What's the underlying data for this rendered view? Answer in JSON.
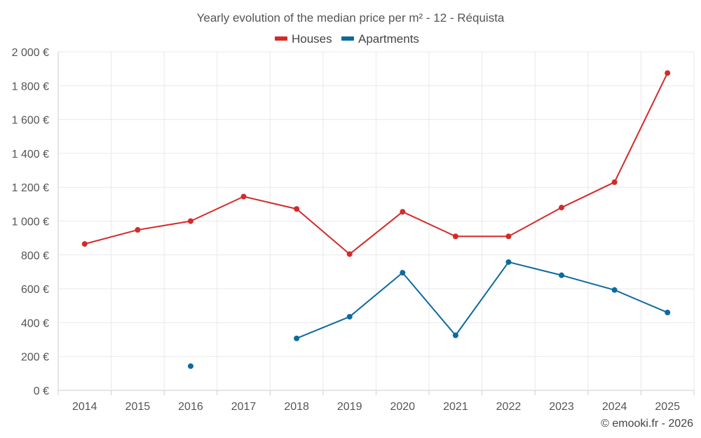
{
  "chart_data": {
    "type": "line",
    "title": "Yearly evolution of the median price per m² - 12 - Réquista",
    "categories": [
      "2014",
      "2015",
      "2016",
      "2017",
      "2018",
      "2019",
      "2020",
      "2021",
      "2022",
      "2023",
      "2024",
      "2025"
    ],
    "series": [
      {
        "name": "Houses",
        "color": "#d42a2a",
        "values": [
          865,
          948,
          1000,
          1145,
          1072,
          805,
          1055,
          910,
          910,
          1080,
          1230,
          1875
        ]
      },
      {
        "name": "Apartments",
        "color": "#0d6a9e",
        "values": [
          null,
          null,
          143,
          null,
          307,
          435,
          695,
          325,
          758,
          680,
          593,
          460
        ]
      }
    ],
    "ylim": [
      0,
      2000
    ],
    "y_ticks": [
      0,
      200,
      400,
      600,
      800,
      1000,
      1200,
      1400,
      1600,
      1800,
      2000
    ],
    "y_tick_labels": [
      "0 €",
      "200 €",
      "400 €",
      "600 €",
      "800 €",
      "1 000 €",
      "1 200 €",
      "1 400 €",
      "1 600 €",
      "1 800 €",
      "2 000 €"
    ],
    "xlabel": "",
    "ylabel": "",
    "grid": true,
    "legend_position": "top-center"
  },
  "credit": "© emooki.fr - 2026"
}
